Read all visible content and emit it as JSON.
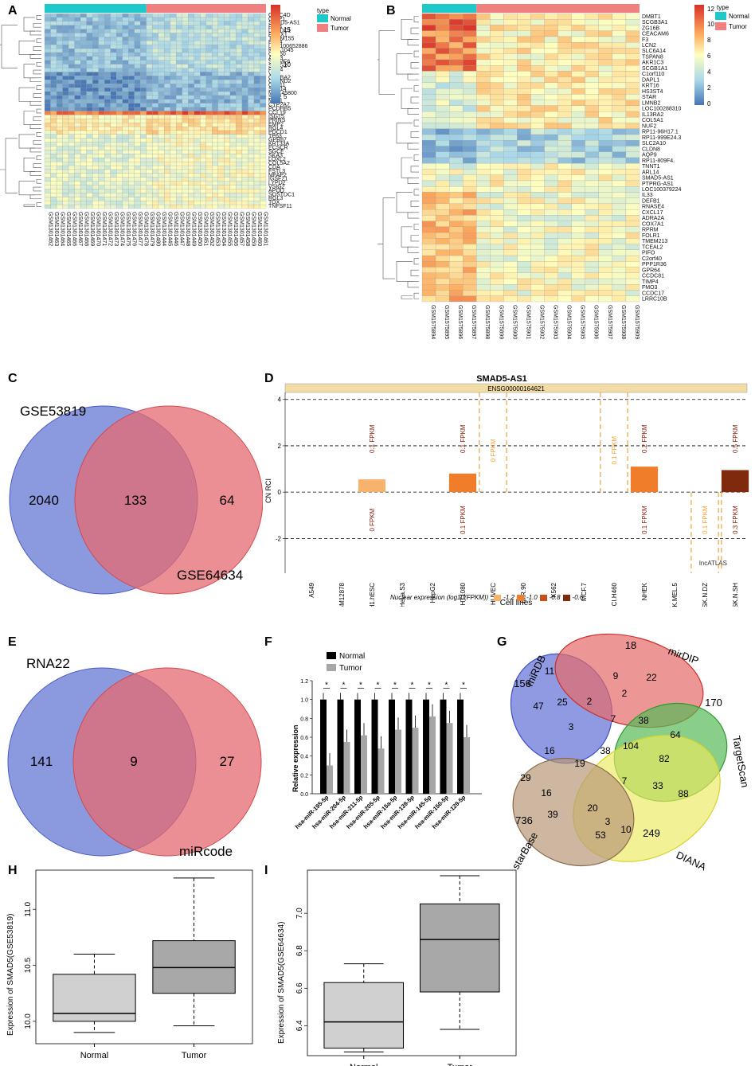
{
  "figure": {
    "panel_labels": [
      "A",
      "B",
      "C",
      "D",
      "E",
      "F",
      "G",
      "H",
      "I"
    ]
  },
  "panel_a": {
    "legend_title": "type",
    "legend_normal": "Normal",
    "legend_tumor": "Tumor",
    "colorbar_ticks": [
      "15",
      "10",
      "5"
    ],
    "colors": {
      "normal": "#1fc9c9",
      "tumor": "#f08080",
      "high": "#d73027",
      "mid": "#ffffbf",
      "low": "#4575b4"
    },
    "genes": [
      "CLEC4D",
      "GRIP1",
      "SMAD5-AS1",
      "PLK4",
      "DEPDC1",
      "PROX1",
      "TMEM155",
      "ETV4",
      "LOC100652886",
      "KIAA1045",
      "CD160",
      "ACY3",
      "SLAMF6",
      "SNTG2",
      "PDK4",
      "VIL1",
      "CRYBA2",
      "CTNND2",
      "CST11",
      "SOX14",
      "MGC45800",
      "SIM2",
      "MAEL",
      "CYP2A7",
      "PCDHB5",
      "CCL19",
      "ISG15",
      "PRINS",
      "EMP2",
      "RGL4",
      "PDCD1",
      "TP63",
      "GPR87",
      "KRT33A",
      "ECSCR",
      "SGCE",
      "SKA3",
      "LOXL2",
      "COL5A2",
      "CDA",
      "FSTL3",
      "MFAP2",
      "IGSF21",
      "LYPD2",
      "VSIG2",
      "APOD",
      "SOSTDC1",
      "RGL3",
      "TOX",
      "TNFSF11"
    ],
    "samples": [
      "GSM1301462",
      "GSM1301463",
      "GSM1301464",
      "GSM1301465",
      "GSM1301466",
      "GSM1301467",
      "GSM1301468",
      "GSM1301469",
      "GSM1301470",
      "GSM1301471",
      "GSM1301472",
      "GSM1301473",
      "GSM1301474",
      "GSM1301475",
      "GSM1301476",
      "GSM1301477",
      "GSM1301478",
      "GSM1301479",
      "GSM1301480",
      "GSM1301444",
      "GSM1301445",
      "GSM1301446",
      "GSM1301447",
      "GSM1301448",
      "GSM1301449",
      "GSM1301450",
      "GSM1301451",
      "GSM1301452",
      "GSM1301453",
      "GSM1301454",
      "GSM1301455",
      "GSM1301456",
      "GSM1301457",
      "GSM1301458",
      "GSM1301459",
      "GSM1301460",
      "GSM1301461"
    ],
    "n_normal": 17
  },
  "panel_b": {
    "legend_title": "type",
    "legend_normal": "Normal",
    "legend_tumor": "Tumor",
    "colorbar_ticks": [
      "12",
      "10",
      "8",
      "6",
      "4",
      "2",
      "0"
    ],
    "genes": [
      "DMBT1",
      "SCGB3A1",
      "ZG16B",
      "CEACAM6",
      "F3",
      "LCN2",
      "SLC6A14",
      "TSPAN8",
      "AKR1C3",
      "SCGB1A1",
      "C1orf110",
      "DAPL1",
      "KRT16",
      "HS3ST4",
      "STAR",
      "LMNB2",
      "LOC100288310",
      "IL13RA2",
      "COL5A1",
      "NUF2",
      "RP11-96H17.1",
      "RP11-999E24.3",
      "SLC2A10",
      "CLDN8",
      "AQP9",
      "RP11-809F4.",
      "TNNT1",
      "ARL14",
      "SMAD5-AS1",
      "PTPRG-AS1",
      "LOC100379224",
      "IL33",
      "DEFB1",
      "RNASE4",
      "CXCL17",
      "ADRA2A",
      "COX7A1",
      "RPRM",
      "FOLR1",
      "TMEM213",
      "TCEAL2",
      "PIFO",
      "C2orf40",
      "PPP1R36",
      "GPR64",
      "CCDC81",
      "TIMP4",
      "FMO3",
      "CCDC17",
      "LRRC10B"
    ],
    "samples": [
      "GSM1575894",
      "GSM1575895",
      "GSM1575896",
      "GSM1575897",
      "GSM1575898",
      "GSM1575899",
      "GSM1575900",
      "GSM1575901",
      "GSM1575902",
      "GSM1575903",
      "GSM1575904",
      "GSM1575905",
      "GSM1575906",
      "GSM1575907",
      "GSM1575908",
      "GSM1575909"
    ],
    "n_normal": 4
  },
  "panel_c": {
    "left_label": "GSE53819",
    "right_label": "GSE64634",
    "left_only": "2040",
    "overlap": "133",
    "right_only": "64"
  },
  "panel_d": {
    "title": "SMAD5-AS1",
    "gene_id": "ENSG00000164621",
    "ylabel": "CN RCI",
    "xlabel": "Cell lines",
    "y_ticks": [
      "4",
      "2",
      "0",
      "-2"
    ],
    "watermark": "lncATLAS",
    "legend_title": "Nuclear expression (log10(FPKM))",
    "legend_values": [
      "-1.2",
      "-1.0",
      "-0.8",
      "-0.6"
    ],
    "legend_colors": [
      "#f7b26e",
      "#ef7d2a",
      "#c5501c",
      "#7f2a0c"
    ],
    "chart_data": {
      "type": "bar",
      "title": "SMAD5-AS1",
      "xlabel": "Cell lines",
      "ylabel": "CN RCI",
      "ylim": [
        -3.5,
        4.3
      ],
      "categories": [
        "A549",
        "GM12878",
        "H1.hESC",
        "HeLa.S3",
        "HepG2",
        "HT1080",
        "HUVEC",
        "IMR.90",
        "K562",
        "MCF.7",
        "NCI.H460",
        "NHEK",
        "SK.MEL.5",
        "SK.N.DZ",
        "SK.N.SH"
      ],
      "values": [
        null,
        null,
        0.55,
        null,
        null,
        0.8,
        null,
        null,
        null,
        null,
        null,
        1.1,
        null,
        null,
        0.95
      ],
      "cytoplasm_labels": [
        null,
        null,
        "0.1 FPKM",
        null,
        null,
        "0.1 FPKM",
        "0 FPKM",
        null,
        null,
        null,
        "0.1 FPKM",
        "0.2 FPKM",
        null,
        null,
        "0.5 FPKM"
      ],
      "nucleus_labels": [
        null,
        null,
        "0 FPKM",
        null,
        null,
        "0.1 FPKM",
        null,
        null,
        null,
        null,
        null,
        "0.1 FPKM",
        null,
        "0.1 FPKM",
        "0.3 FPKM"
      ]
    }
  },
  "panel_e": {
    "left_label": "RNA22",
    "right_label": "miRcode",
    "left_only": "141",
    "overlap": "9",
    "right_only": "27"
  },
  "panel_f": {
    "legend_normal": "Normal",
    "legend_tumor": "Tumor",
    "sig_mark": "*",
    "chart_data": {
      "type": "bar",
      "ylabel": "Relative expression",
      "ylim": [
        0,
        1.2
      ],
      "categories": [
        "hsa-miR-195-5p",
        "hsa-miR-204-5p",
        "hsa-miR-211-5p",
        "hsa-miR-205-5p",
        "hsa-miR-15a-5p",
        "hsa-miR-139-5p",
        "hsa-miR-145-5p",
        "hsa-miR-150-5p",
        "hsa-miR-129-5p"
      ],
      "series": [
        {
          "name": "Normal",
          "values": [
            1,
            1,
            1,
            1,
            1,
            1,
            1,
            1,
            1
          ]
        },
        {
          "name": "Tumor",
          "values": [
            0.3,
            0.55,
            0.62,
            0.48,
            0.68,
            0.7,
            0.82,
            0.75,
            0.6
          ]
        }
      ]
    }
  },
  "panel_g": {
    "sets": [
      "miRDB",
      "mirDIP",
      "TargetScan",
      "DIANA",
      "starBase"
    ],
    "numbers": [
      "156",
      "18",
      "170",
      "249",
      "736",
      "11",
      "9",
      "22",
      "2",
      "2",
      "47",
      "25",
      "7",
      "38",
      "64",
      "3",
      "38",
      "104",
      "82",
      "16",
      "19",
      "7",
      "33",
      "88",
      "29",
      "16",
      "39",
      "20",
      "3",
      "10",
      "53"
    ]
  },
  "panel_h": {
    "ylabel": "Expression of SMAD5(GSE53819)",
    "chart_data": {
      "type": "box",
      "categories": [
        "Normal",
        "Tumor"
      ],
      "ylim": [
        9.8,
        11.35
      ],
      "y_ticks": [
        10.0,
        10.5,
        11.0
      ],
      "boxes": [
        {
          "name": "Normal",
          "min": 9.9,
          "q1": 10.0,
          "median": 10.07,
          "q3": 10.42,
          "max": 10.6
        },
        {
          "name": "Tumor",
          "min": 9.96,
          "q1": 10.25,
          "median": 10.48,
          "q3": 10.72,
          "max": 11.28
        }
      ]
    }
  },
  "panel_i": {
    "ylabel": "Expression of SMAD5(GSE64634)",
    "chart_data": {
      "type": "box",
      "categories": [
        "Normal",
        "Tumor"
      ],
      "ylim": [
        6.24,
        7.23
      ],
      "y_ticks": [
        6.4,
        6.6,
        6.8,
        7.0
      ],
      "boxes": [
        {
          "name": "Normal",
          "min": 6.26,
          "q1": 6.28,
          "median": 6.42,
          "q3": 6.63,
          "max": 6.73
        },
        {
          "name": "Tumor",
          "min": 6.38,
          "q1": 6.58,
          "median": 6.86,
          "q3": 7.05,
          "max": 7.2
        }
      ]
    }
  }
}
